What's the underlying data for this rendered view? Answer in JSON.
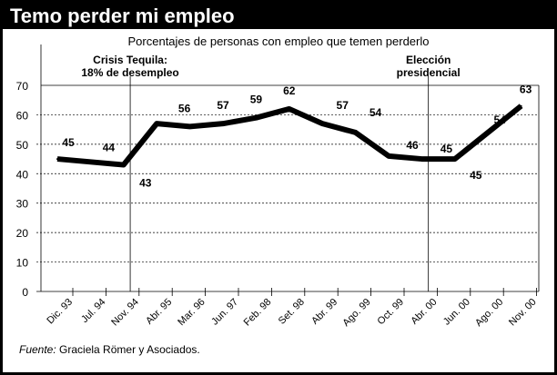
{
  "header": {
    "title": "Temo perder mi empleo"
  },
  "footer": {
    "source_label": "Fuente:",
    "source_text": " Graciela Römer y Asociados."
  },
  "chart_data": {
    "type": "line",
    "title": "Porcentajes de personas con empleo que temen perderlo",
    "xlabel": "",
    "ylabel": "",
    "ylim": [
      0,
      70
    ],
    "yticks": [
      0,
      10,
      20,
      30,
      40,
      50,
      60,
      70
    ],
    "grid": "dashed horizontal",
    "categories": [
      "Dic. 93",
      "Jul. 94",
      "Nov. 94",
      "Abr. 95",
      "Mar. 96",
      "Jun. 97",
      "Feb. 98",
      "Set. 98",
      "Abr. 99",
      "Ago. 99",
      "Oct. 99",
      "Abr. 00",
      "Jun. 00",
      "Ago. 00",
      "Nov. 00"
    ],
    "values": [
      45,
      44,
      43,
      57,
      56,
      57,
      59,
      62,
      57,
      54,
      46,
      45,
      45,
      54,
      63
    ],
    "labels": [
      "45",
      "44",
      "43",
      null,
      "56",
      "57",
      "59",
      "62",
      "57",
      "54",
      "46",
      "45",
      "45",
      "54",
      "63"
    ],
    "annotations": [
      {
        "text_lines": [
          "Crisis Tequila:",
          "18% de desempleo"
        ],
        "x_index": 2.2
      },
      {
        "text_lines": [
          "Elección",
          "presidencial"
        ],
        "x_index": 11.2
      }
    ],
    "color": "#000000"
  }
}
